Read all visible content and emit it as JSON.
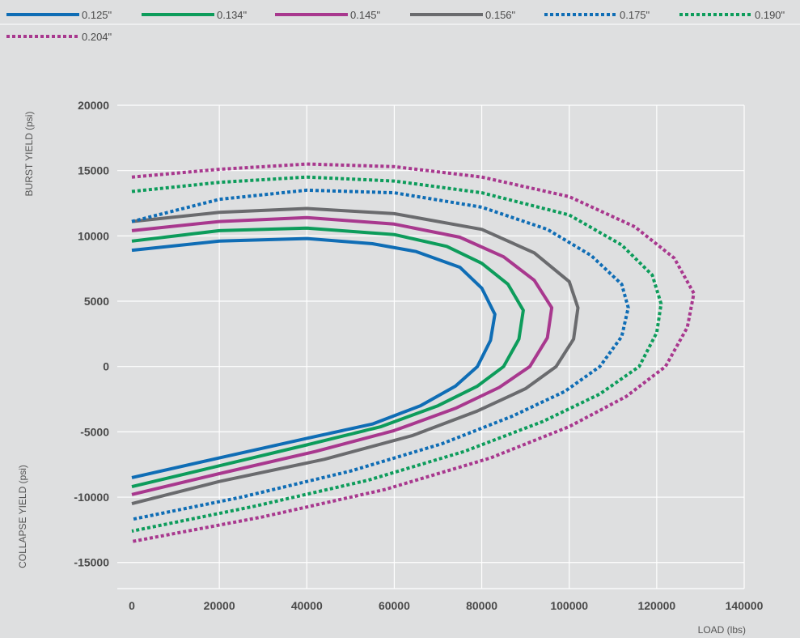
{
  "chart_data": {
    "type": "line",
    "xlabel": "LOAD (lbs)",
    "ylabel_top": "BURST YIELD (psi)",
    "ylabel_bottom": "COLLAPSE YIELD (psi)",
    "xlim": [
      0,
      140000
    ],
    "ylim": [
      -17000,
      20000
    ],
    "x_ticks": [
      0,
      20000,
      40000,
      60000,
      80000,
      100000,
      120000,
      140000
    ],
    "y_ticks": [
      20000,
      15000,
      10000,
      5000,
      0,
      -5000,
      -10000,
      -15000
    ],
    "grid": true,
    "legend_position": "top",
    "series": [
      {
        "name": "0.125\"",
        "color": "#0f6db5",
        "style": "solid",
        "points": [
          [
            0,
            8900
          ],
          [
            20000,
            9600
          ],
          [
            40000,
            9800
          ],
          [
            55000,
            9400
          ],
          [
            65000,
            8800
          ],
          [
            75000,
            7600
          ],
          [
            80000,
            6000
          ],
          [
            83000,
            4000
          ],
          [
            82000,
            2000
          ],
          [
            79000,
            0
          ],
          [
            74000,
            -1500
          ],
          [
            66000,
            -3000
          ],
          [
            55000,
            -4400
          ],
          [
            40000,
            -5500
          ],
          [
            20000,
            -7000
          ],
          [
            0,
            -8500
          ]
        ]
      },
      {
        "name": "0.134\"",
        "color": "#0d9c5b",
        "style": "solid",
        "points": [
          [
            0,
            9600
          ],
          [
            20000,
            10400
          ],
          [
            40000,
            10600
          ],
          [
            60000,
            10100
          ],
          [
            72000,
            9200
          ],
          [
            80000,
            7900
          ],
          [
            86000,
            6300
          ],
          [
            89500,
            4300
          ],
          [
            88500,
            2100
          ],
          [
            85000,
            0
          ],
          [
            79000,
            -1500
          ],
          [
            70000,
            -3000
          ],
          [
            57000,
            -4600
          ],
          [
            40000,
            -6000
          ],
          [
            20000,
            -7600
          ],
          [
            0,
            -9200
          ]
        ]
      },
      {
        "name": "0.145\"",
        "color": "#a8388e",
        "style": "solid",
        "points": [
          [
            0,
            10400
          ],
          [
            20000,
            11100
          ],
          [
            40000,
            11400
          ],
          [
            60000,
            10900
          ],
          [
            75000,
            9900
          ],
          [
            85000,
            8400
          ],
          [
            92000,
            6600
          ],
          [
            96000,
            4500
          ],
          [
            95000,
            2200
          ],
          [
            91000,
            0
          ],
          [
            84000,
            -1600
          ],
          [
            74000,
            -3200
          ],
          [
            60000,
            -4900
          ],
          [
            42000,
            -6500
          ],
          [
            20000,
            -8200
          ],
          [
            0,
            -9800
          ]
        ]
      },
      {
        "name": "0.156\"",
        "color": "#6a6b6e",
        "style": "solid",
        "points": [
          [
            0,
            11100
          ],
          [
            20000,
            11800
          ],
          [
            40000,
            12100
          ],
          [
            60000,
            11700
          ],
          [
            80000,
            10500
          ],
          [
            92000,
            8700
          ],
          [
            100000,
            6500
          ],
          [
            102000,
            4500
          ],
          [
            101000,
            2100
          ],
          [
            97000,
            0
          ],
          [
            90000,
            -1700
          ],
          [
            79000,
            -3400
          ],
          [
            64000,
            -5300
          ],
          [
            44000,
            -7100
          ],
          [
            20000,
            -8800
          ],
          [
            0,
            -10500
          ]
        ]
      },
      {
        "name": "0.175\"",
        "color": "#0f6db5",
        "style": "dotted",
        "points": [
          [
            0,
            11100
          ],
          [
            20000,
            12800
          ],
          [
            40000,
            13500
          ],
          [
            60000,
            13300
          ],
          [
            80000,
            12200
          ],
          [
            95000,
            10500
          ],
          [
            105000,
            8500
          ],
          [
            112000,
            6300
          ],
          [
            113500,
            4500
          ],
          [
            112000,
            2300
          ],
          [
            107000,
            0
          ],
          [
            99000,
            -1900
          ],
          [
            87000,
            -3800
          ],
          [
            71000,
            -5900
          ],
          [
            50000,
            -8000
          ],
          [
            25000,
            -10000
          ],
          [
            0,
            -11700
          ]
        ]
      },
      {
        "name": "0.190\"",
        "color": "#0d9c5b",
        "style": "dotted",
        "points": [
          [
            0,
            13400
          ],
          [
            20000,
            14100
          ],
          [
            40000,
            14500
          ],
          [
            60000,
            14200
          ],
          [
            80000,
            13300
          ],
          [
            100000,
            11600
          ],
          [
            112000,
            9300
          ],
          [
            119000,
            7000
          ],
          [
            121000,
            4800
          ],
          [
            120000,
            2600
          ],
          [
            116000,
            0
          ],
          [
            107000,
            -2100
          ],
          [
            94000,
            -4200
          ],
          [
            76000,
            -6500
          ],
          [
            54000,
            -8700
          ],
          [
            28000,
            -10700
          ],
          [
            0,
            -12600
          ]
        ]
      },
      {
        "name": "0.204\"",
        "color": "#a8388e",
        "style": "dotted",
        "points": [
          [
            0,
            14500
          ],
          [
            20000,
            15100
          ],
          [
            40000,
            15500
          ],
          [
            60000,
            15300
          ],
          [
            80000,
            14500
          ],
          [
            100000,
            13000
          ],
          [
            115000,
            10700
          ],
          [
            124000,
            8300
          ],
          [
            128500,
            5600
          ],
          [
            127000,
            3000
          ],
          [
            122000,
            0
          ],
          [
            113000,
            -2300
          ],
          [
            100000,
            -4600
          ],
          [
            82000,
            -7000
          ],
          [
            58000,
            -9400
          ],
          [
            30000,
            -11500
          ],
          [
            0,
            -13400
          ]
        ]
      }
    ]
  }
}
